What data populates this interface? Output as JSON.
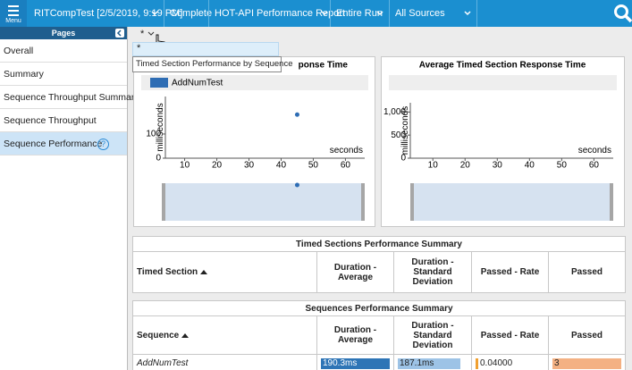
{
  "toolbar": {
    "menu": "Menu",
    "items": [
      "RITCompTest [2/5/2019, 9:19 PM]",
      "Complete",
      "HOT-API Performance Report",
      "Entire Run",
      "All Sources"
    ]
  },
  "sidebar": {
    "title": "Pages",
    "items": [
      "Overall",
      "Summary",
      "Sequence Throughput Summary",
      "Sequence Throughput",
      "Sequence Performance"
    ],
    "help": "?"
  },
  "tab": {
    "label": "*",
    "menu_item": "*"
  },
  "tooltip": "Timed Section Performance by Sequence",
  "chart_data": [
    {
      "type": "scatter",
      "title": "ponse Time",
      "x_label": "seconds",
      "y_label": "milliseconds",
      "series": [
        {
          "name": "AddNumTest",
          "color": "#2e6db4",
          "x": [
            45
          ],
          "values": [
            180
          ]
        }
      ],
      "xlim": [
        4,
        66
      ],
      "xticks": [
        10,
        20,
        30,
        40,
        50,
        60
      ],
      "ylim": [
        0,
        255
      ],
      "yticks": [
        0,
        100
      ]
    },
    {
      "type": "scatter",
      "title": "Average Timed Section Response Time",
      "x_label": "seconds",
      "y_label": "milliseconds",
      "series": [],
      "xlim": [
        3,
        66
      ],
      "xticks": [
        10,
        20,
        30,
        40,
        50,
        60
      ],
      "ylim": [
        0,
        1200
      ],
      "yticks": [
        0,
        500,
        {
          "value": 1000,
          "label": "1,000"
        }
      ]
    }
  ],
  "tables": [
    {
      "title": "Timed Sections Performance Summary",
      "columns": [
        "Timed Section",
        "Duration - Average",
        "Duration - Standard Deviation",
        "Passed - Rate",
        "Passed"
      ],
      "rows": []
    },
    {
      "title": "Sequences Performance Summary",
      "columns": [
        "Sequence",
        "Duration - Average",
        "Duration - Standard Deviation",
        "Passed - Rate",
        "Passed"
      ],
      "rows": [
        [
          "AddNumTest",
          "190.3ms",
          "187.1ms",
          "0.04000",
          "3"
        ]
      ]
    }
  ]
}
